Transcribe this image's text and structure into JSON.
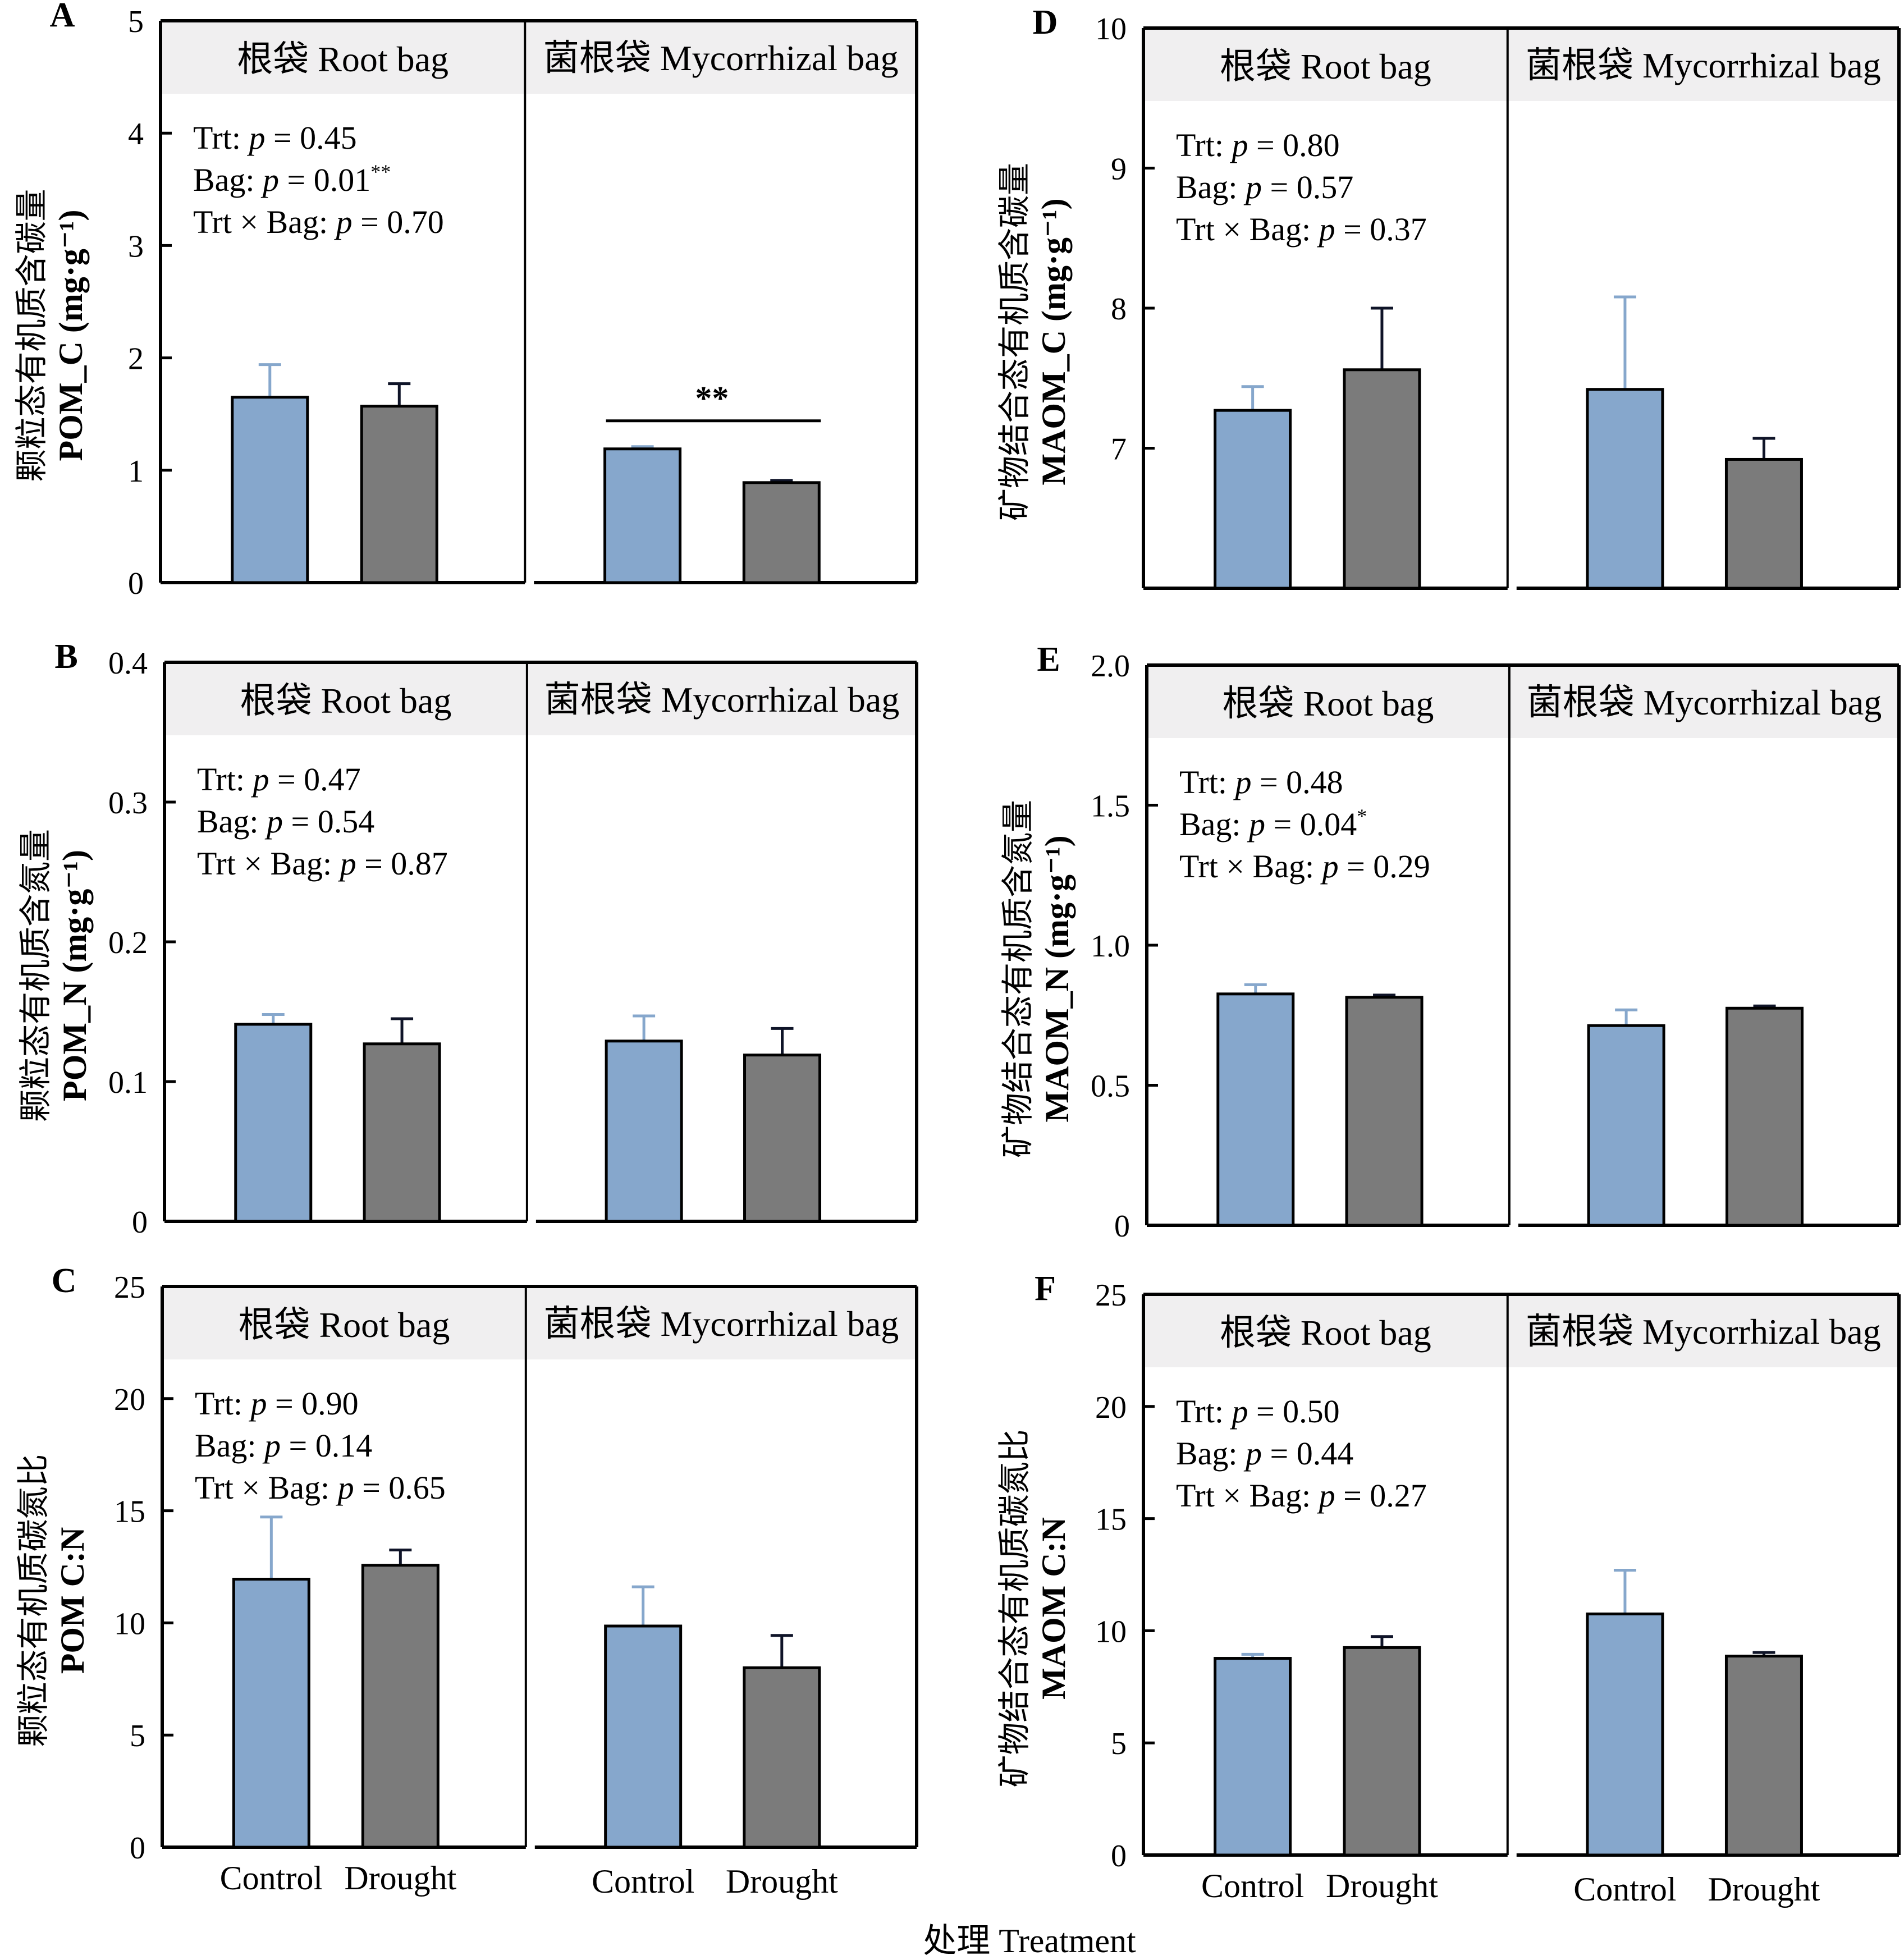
{
  "figure": {
    "x_axis_title": "处理 Treatment",
    "strip_labels": [
      "根袋 Root bag",
      "菌根袋 Mycorrhizal bag"
    ],
    "categories": [
      "Control",
      "Drought"
    ],
    "colors": {
      "control": "#86a7cc",
      "drought": "#7b7b7b",
      "control_error": "#86a7cc",
      "drought_error": "#0f1428",
      "strip_bg": "#f0eff0",
      "axis": "#000000"
    }
  },
  "chart_data": [
    {
      "type": "bar",
      "panel": "A",
      "ylabel_cn": "颗粒态有机质含碳量",
      "ylabel_en": "POM_C (mg·g⁻¹)",
      "ylim": [
        0,
        5
      ],
      "yticks": [
        "0",
        "1",
        "2",
        "3",
        "4",
        "5"
      ],
      "ytick_values": [
        0,
        1,
        2,
        3,
        4,
        5
      ],
      "groups": [
        "Root bag",
        "Mycorrhizal bag"
      ],
      "categories": [
        "Control",
        "Drought"
      ],
      "series": [
        {
          "group": "Root bag",
          "values": [
            1.65,
            1.57
          ],
          "error_upper": [
            1.94,
            1.77
          ]
        },
        {
          "group": "Mycorrhizal bag",
          "values": [
            1.19,
            0.89
          ],
          "error_upper": [
            1.21,
            0.91
          ]
        }
      ],
      "stats": [
        "Trt: ",
        "p",
        " = 0.45",
        "Bag: ",
        "p",
        " = 0.01",
        "**",
        "Trt × Bag: ",
        "p",
        " = 0.70"
      ],
      "stat_lines": [
        {
          "label": "Trt: ",
          "p": "p",
          "value": " = 0.45",
          "sup": ""
        },
        {
          "label": "Bag: ",
          "p": "p",
          "value": " = 0.01",
          "sup": "**"
        },
        {
          "label": "Trt × Bag: ",
          "p": "p",
          "value": " = 0.70",
          "sup": ""
        }
      ],
      "annotations": [
        {
          "group": "Mycorrhizal bag",
          "text": "**",
          "y": 1.44
        }
      ]
    },
    {
      "type": "bar",
      "panel": "B",
      "ylabel_cn": "颗粒态有机质含氮量",
      "ylabel_en": "POM_N (mg·g⁻¹)",
      "ylim": [
        0,
        0.4
      ],
      "yticks": [
        "0",
        "0.1",
        "0.2",
        "0.3",
        "0.4"
      ],
      "ytick_values": [
        0,
        0.1,
        0.2,
        0.3,
        0.4
      ],
      "groups": [
        "Root bag",
        "Mycorrhizal bag"
      ],
      "categories": [
        "Control",
        "Drought"
      ],
      "series": [
        {
          "group": "Root bag",
          "values": [
            0.141,
            0.127
          ],
          "error_upper": [
            0.148,
            0.145
          ]
        },
        {
          "group": "Mycorrhizal bag",
          "values": [
            0.129,
            0.119
          ],
          "error_upper": [
            0.147,
            0.138
          ]
        }
      ],
      "stat_lines": [
        {
          "label": "Trt: ",
          "p": "p",
          "value": " = 0.47",
          "sup": ""
        },
        {
          "label": "Bag: ",
          "p": "p",
          "value": " = 0.54",
          "sup": ""
        },
        {
          "label": "Trt × Bag: ",
          "p": "p",
          "value": " = 0.87",
          "sup": ""
        }
      ],
      "annotations": []
    },
    {
      "type": "bar",
      "panel": "C",
      "ylabel_cn": "颗粒态有机质碳氮比",
      "ylabel_en": "POM C:N",
      "ylim": [
        0,
        25
      ],
      "yticks": [
        "0",
        "5",
        "10",
        "15",
        "20",
        "25"
      ],
      "ytick_values": [
        0,
        5,
        10,
        15,
        20,
        25
      ],
      "groups": [
        "Root bag",
        "Mycorrhizal bag"
      ],
      "categories": [
        "Control",
        "Drought"
      ],
      "series": [
        {
          "group": "Root bag",
          "values": [
            11.95,
            12.57
          ],
          "error_upper": [
            14.72,
            13.25
          ]
        },
        {
          "group": "Mycorrhizal bag",
          "values": [
            9.86,
            8.0
          ],
          "error_upper": [
            11.61,
            9.44
          ]
        }
      ],
      "stat_lines": [
        {
          "label": "Trt: ",
          "p": "p",
          "value": " = 0.90",
          "sup": ""
        },
        {
          "label": "Bag: ",
          "p": "p",
          "value": " = 0.14",
          "sup": ""
        },
        {
          "label": "Trt × Bag: ",
          "p": "p",
          "value": " = 0.65",
          "sup": ""
        }
      ],
      "annotations": [],
      "show_xcats": true
    },
    {
      "type": "bar",
      "panel": "D",
      "ylabel_cn": "矿物结合态有机质含碳量",
      "ylabel_en": "MAOM_C (mg·g⁻¹)",
      "ylim": [
        6,
        10
      ],
      "yticks": [
        "7",
        "8",
        "9",
        "10"
      ],
      "ytick_values": [
        7,
        8,
        9,
        10
      ],
      "groups": [
        "Root bag",
        "Mycorrhizal bag"
      ],
      "categories": [
        "Control",
        "Drought"
      ],
      "series": [
        {
          "group": "Root bag",
          "values": [
            7.27,
            7.56
          ],
          "error_upper": [
            7.44,
            8.0
          ]
        },
        {
          "group": "Mycorrhizal bag",
          "values": [
            7.42,
            6.92
          ],
          "error_upper": [
            8.08,
            7.07
          ]
        }
      ],
      "stat_lines": [
        {
          "label": "Trt: ",
          "p": "p",
          "value": " = 0.80",
          "sup": ""
        },
        {
          "label": "Bag: ",
          "p": "p",
          "value": " = 0.57",
          "sup": ""
        },
        {
          "label": "Trt × Bag: ",
          "p": "p",
          "value": " = 0.37",
          "sup": ""
        }
      ],
      "annotations": []
    },
    {
      "type": "bar",
      "panel": "E",
      "ylabel_cn": "矿物结合态有机质含氮量",
      "ylabel_en": "MAOM_N (mg·g⁻¹)",
      "ylim": [
        0,
        2.0
      ],
      "yticks": [
        "0",
        "0.5",
        "1.0",
        "1.5",
        "2.0"
      ],
      "ytick_values": [
        0,
        0.5,
        1.0,
        1.5,
        2.0
      ],
      "groups": [
        "Root bag",
        "Mycorrhizal bag"
      ],
      "categories": [
        "Control",
        "Drought"
      ],
      "series": [
        {
          "group": "Root bag",
          "values": [
            0.826,
            0.814
          ],
          "error_upper": [
            0.859,
            0.822
          ]
        },
        {
          "group": "Mycorrhizal bag",
          "values": [
            0.713,
            0.775
          ],
          "error_upper": [
            0.769,
            0.783
          ]
        }
      ],
      "stat_lines": [
        {
          "label": "Trt: ",
          "p": "p",
          "value": " = 0.48",
          "sup": ""
        },
        {
          "label": "Bag: ",
          "p": "p",
          "value": " = 0.04",
          "sup": "*"
        },
        {
          "label": "Trt × Bag: ",
          "p": "p",
          "value": " = 0.29",
          "sup": ""
        }
      ],
      "annotations": []
    },
    {
      "type": "bar",
      "panel": "F",
      "ylabel_cn": "矿物结合态有机质碳氮比",
      "ylabel_en": "MAOM C:N",
      "ylim": [
        0,
        25
      ],
      "yticks": [
        "0",
        "5",
        "10",
        "15",
        "20",
        "25"
      ],
      "ytick_values": [
        0,
        5,
        10,
        15,
        20,
        25
      ],
      "groups": [
        "Root bag",
        "Mycorrhizal bag"
      ],
      "categories": [
        "Control",
        "Drought"
      ],
      "series": [
        {
          "group": "Root bag",
          "values": [
            8.77,
            9.25
          ],
          "error_upper": [
            8.95,
            9.74
          ]
        },
        {
          "group": "Mycorrhizal bag",
          "values": [
            10.75,
            8.87
          ],
          "error_upper": [
            12.7,
            9.03
          ]
        }
      ],
      "stat_lines": [
        {
          "label": "Trt: ",
          "p": "p",
          "value": " = 0.50",
          "sup": ""
        },
        {
          "label": "Bag: ",
          "p": "p",
          "value": " = 0.44",
          "sup": ""
        },
        {
          "label": "Trt × Bag: ",
          "p": "p",
          "value": " = 0.27",
          "sup": ""
        }
      ],
      "annotations": [],
      "show_xcats": true
    }
  ]
}
